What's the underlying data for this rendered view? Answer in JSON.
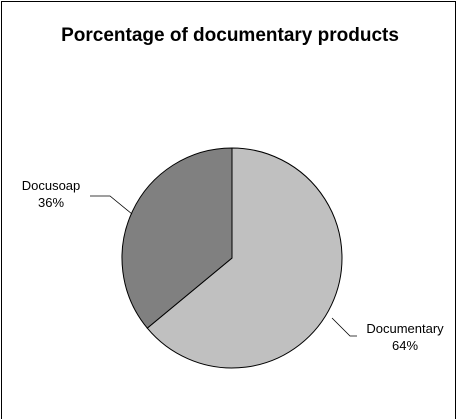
{
  "chart_data": {
    "type": "pie",
    "title": "Porcentage of documentary products",
    "slices": [
      {
        "name": "Documentary",
        "value": 64,
        "pct_label": "64%",
        "color": "#c0c0c0"
      },
      {
        "name": "Docusoap",
        "value": 36,
        "pct_label": "36%",
        "color": "#808080"
      }
    ],
    "stroke_color": "#000000"
  }
}
